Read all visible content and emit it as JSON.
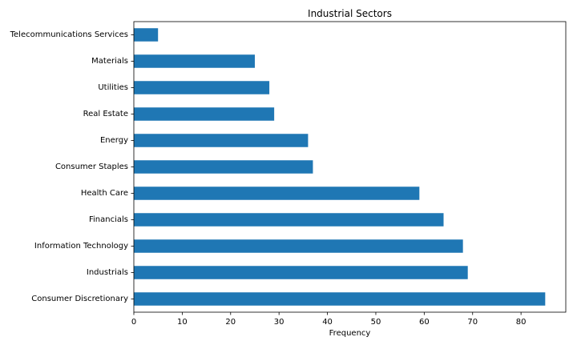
{
  "chart_data": {
    "type": "bar",
    "orientation": "horizontal",
    "title": "Industrial Sectors",
    "xlabel": "Frequency",
    "ylabel": "",
    "categories": [
      "Consumer Discretionary",
      "Industrials",
      "Information Technology",
      "Financials",
      "Health Care",
      "Consumer Staples",
      "Energy",
      "Real Estate",
      "Utilities",
      "Materials",
      "Telecommunications Services"
    ],
    "values": [
      85,
      69,
      68,
      64,
      59,
      37,
      36,
      29,
      28,
      25,
      5
    ],
    "xlim": [
      0,
      89.25
    ],
    "xticks": [
      0,
      10,
      20,
      30,
      40,
      50,
      60,
      70,
      80
    ],
    "grid": false,
    "legend": "none",
    "bar_color": "#1f77b4"
  }
}
